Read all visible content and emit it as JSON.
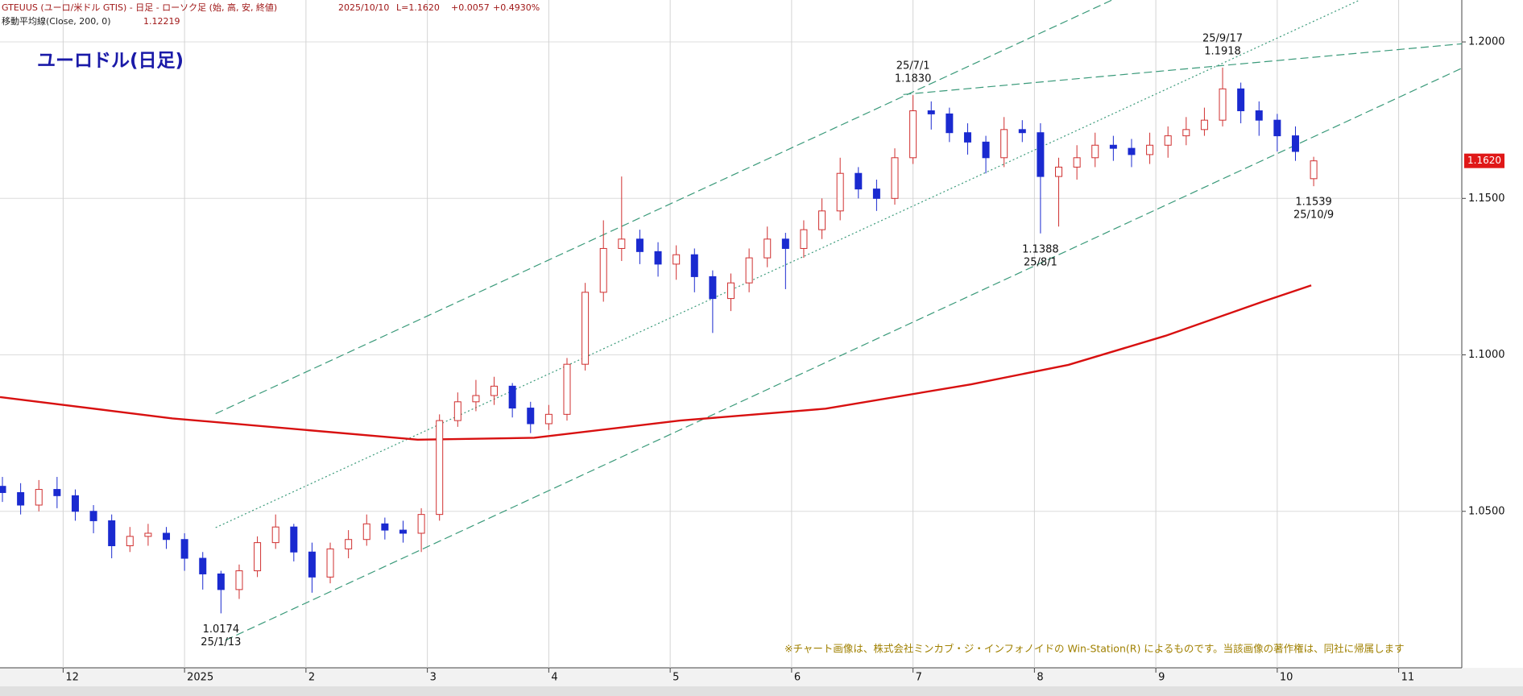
{
  "header": {
    "line1": "GTEUUS (ユーロ/米ドル GTIS) - 日足 - ローソク足 (始, 高, 安, 終値)",
    "date": "2025/10/10",
    "last": "L=1.1620",
    "change": "+0.0057",
    "change_pct": "+0.4930%",
    "ma_label": "移動平均線(Close, 200, 0)",
    "ma_last": 1.12219
  },
  "chart_data": {
    "type": "candlestick",
    "title": "ユーロドル(日足)",
    "xlim": [
      -1.52,
      10.52
    ],
    "ylim": [
      1.0,
      1.2134
    ],
    "xticks": [
      {
        "value": -1,
        "label": "12"
      },
      {
        "value": 0,
        "label": "2025"
      },
      {
        "value": 1,
        "label": "2"
      },
      {
        "value": 2,
        "label": "3"
      },
      {
        "value": 3,
        "label": "4"
      },
      {
        "value": 4,
        "label": "5"
      },
      {
        "value": 5,
        "label": "6"
      },
      {
        "value": 6,
        "label": "7"
      },
      {
        "value": 7,
        "label": "8"
      },
      {
        "value": 8,
        "label": "9"
      },
      {
        "value": 9,
        "label": "10"
      },
      {
        "value": 10,
        "label": "11"
      }
    ],
    "yticks": [
      {
        "value": 1.05,
        "label": "1.0500"
      },
      {
        "value": 1.1,
        "label": "1.1000"
      },
      {
        "value": 1.15,
        "label": "1.1500"
      },
      {
        "value": 1.2,
        "label": "1.2000"
      }
    ],
    "grid": true,
    "up_color": "#d03030",
    "down_color": "#1a2ad0",
    "candles": {
      "x": [
        -1.5,
        -1.35,
        -1.2,
        -1.05,
        -0.9,
        -0.75,
        -0.6,
        -0.45,
        -0.3,
        -0.15,
        0,
        0.15,
        0.3,
        0.45,
        0.6,
        0.75,
        0.9,
        1.05,
        1.2,
        1.35,
        1.5,
        1.65,
        1.8,
        1.95,
        2.1,
        2.25,
        2.4,
        2.55,
        2.7,
        2.85,
        3,
        3.15,
        3.3,
        3.45,
        3.6,
        3.75,
        3.9,
        4.05,
        4.2,
        4.35,
        4.5,
        4.65,
        4.8,
        4.95,
        5.1,
        5.25,
        5.4,
        5.55,
        5.7,
        5.85,
        6,
        6.15,
        6.3,
        6.45,
        6.6,
        6.75,
        6.9,
        7.05,
        7.2,
        7.35,
        7.5,
        7.65,
        7.8,
        7.95,
        8.1,
        8.25,
        8.4,
        8.55,
        8.7,
        8.85,
        9,
        9.15,
        9.3
      ],
      "open": [
        1.058,
        1.056,
        1.052,
        1.057,
        1.055,
        1.05,
        1.047,
        1.039,
        1.042,
        1.043,
        1.041,
        1.035,
        1.03,
        1.025,
        1.031,
        1.04,
        1.045,
        1.037,
        1.029,
        1.038,
        1.041,
        1.046,
        1.044,
        1.043,
        1.049,
        1.079,
        1.085,
        1.087,
        1.09,
        1.083,
        1.078,
        1.081,
        1.097,
        1.12,
        1.134,
        1.137,
        1.133,
        1.129,
        1.132,
        1.125,
        1.118,
        1.123,
        1.131,
        1.137,
        1.134,
        1.14,
        1.146,
        1.158,
        1.153,
        1.15,
        1.163,
        1.178,
        1.177,
        1.171,
        1.168,
        1.163,
        1.172,
        1.171,
        1.157,
        1.16,
        1.163,
        1.167,
        1.166,
        1.164,
        1.167,
        1.17,
        1.172,
        1.175,
        1.185,
        1.178,
        1.175,
        1.17,
        1.1563
      ],
      "high": [
        1.061,
        1.059,
        1.06,
        1.061,
        1.057,
        1.052,
        1.049,
        1.045,
        1.046,
        1.045,
        1.043,
        1.037,
        1.031,
        1.033,
        1.042,
        1.049,
        1.046,
        1.04,
        1.04,
        1.044,
        1.049,
        1.048,
        1.047,
        1.051,
        1.081,
        1.088,
        1.092,
        1.093,
        1.091,
        1.085,
        1.084,
        1.099,
        1.123,
        1.143,
        1.157,
        1.14,
        1.136,
        1.135,
        1.134,
        1.127,
        1.126,
        1.134,
        1.141,
        1.139,
        1.143,
        1.15,
        1.163,
        1.16,
        1.156,
        1.166,
        1.183,
        1.181,
        1.179,
        1.174,
        1.17,
        1.176,
        1.175,
        1.174,
        1.163,
        1.167,
        1.171,
        1.17,
        1.169,
        1.171,
        1.173,
        1.176,
        1.179,
        1.1918,
        1.187,
        1.181,
        1.177,
        1.173,
        1.1633
      ],
      "low": [
        1.053,
        1.049,
        1.05,
        1.051,
        1.047,
        1.043,
        1.035,
        1.037,
        1.039,
        1.038,
        1.031,
        1.025,
        1.0174,
        1.022,
        1.029,
        1.038,
        1.034,
        1.024,
        1.027,
        1.035,
        1.039,
        1.041,
        1.04,
        1.037,
        1.047,
        1.077,
        1.082,
        1.084,
        1.08,
        1.075,
        1.076,
        1.079,
        1.095,
        1.117,
        1.13,
        1.129,
        1.125,
        1.124,
        1.12,
        1.107,
        1.114,
        1.12,
        1.128,
        1.121,
        1.131,
        1.137,
        1.143,
        1.15,
        1.146,
        1.148,
        1.161,
        1.172,
        1.168,
        1.164,
        1.158,
        1.16,
        1.168,
        1.1388,
        1.141,
        1.156,
        1.16,
        1.162,
        1.16,
        1.161,
        1.163,
        1.167,
        1.17,
        1.173,
        1.174,
        1.17,
        1.165,
        1.162,
        1.1539
      ],
      "close": [
        1.056,
        1.052,
        1.057,
        1.055,
        1.05,
        1.047,
        1.039,
        1.042,
        1.043,
        1.041,
        1.035,
        1.03,
        1.025,
        1.031,
        1.04,
        1.045,
        1.037,
        1.029,
        1.038,
        1.041,
        1.046,
        1.044,
        1.043,
        1.049,
        1.079,
        1.085,
        1.087,
        1.09,
        1.083,
        1.078,
        1.081,
        1.097,
        1.12,
        1.134,
        1.137,
        1.133,
        1.129,
        1.132,
        1.125,
        1.118,
        1.123,
        1.131,
        1.137,
        1.134,
        1.14,
        1.146,
        1.158,
        1.153,
        1.15,
        1.163,
        1.178,
        1.177,
        1.171,
        1.168,
        1.163,
        1.172,
        1.171,
        1.157,
        1.16,
        1.163,
        1.167,
        1.166,
        1.164,
        1.167,
        1.17,
        1.172,
        1.175,
        1.185,
        1.178,
        1.175,
        1.17,
        1.165,
        1.162
      ]
    },
    "moving_average": {
      "color": "#d81010",
      "x": [
        -1.52,
        -0.1,
        1.92,
        2.88,
        4.08,
        5.28,
        6.48,
        7.28,
        8.08,
        8.88,
        9.28
      ],
      "values": [
        1.0865,
        1.0797,
        1.0729,
        1.0735,
        1.079,
        1.0828,
        1.0906,
        1.0968,
        1.1061,
        1.117,
        1.1222
      ]
    },
    "trendlines": [
      {
        "color": "#3a9a7a",
        "style": "dashed",
        "x": [
          0.256,
          7.64
        ],
        "values": [
          1.0812,
          1.2134
        ]
      },
      {
        "color": "#3a9a7a",
        "style": "dotted",
        "x": [
          0.256,
          9.68
        ],
        "values": [
          1.0448,
          1.2134
        ]
      },
      {
        "color": "#3a9a7a",
        "style": "dashed",
        "x": [
          0.336,
          10.52
        ],
        "values": [
          1.0088,
          1.1916
        ]
      },
      {
        "color": "#3a9a7a",
        "style": "dashed",
        "x": [
          5.92,
          10.52
        ],
        "values": [
          1.1832,
          1.1994
        ]
      }
    ],
    "annotations": [
      {
        "date": "25/1/13",
        "price": 1.0174,
        "x": 0.3,
        "side": "below"
      },
      {
        "date": "25/7/1",
        "price": {
          "value": 1.183,
          "label": "1.1830"
        },
        "x": 6.0,
        "side": "above"
      },
      {
        "date": "25/9/17",
        "price": 1.1918,
        "x": 8.55,
        "side": "above"
      },
      {
        "date": "25/8/1",
        "price": 1.1388,
        "x": 7.05,
        "side": "below"
      },
      {
        "date": "25/10/9",
        "price": 1.1539,
        "x": 9.3,
        "side": "below"
      }
    ],
    "last_price": {
      "value": 1.162,
      "label": "1.1620"
    },
    "note": "※チャート画像は、株式会社ミンカブ・ジ・インフォノイドの Win-Station(R) によるものです。当該画像の著作権は、同社に帰属します"
  }
}
